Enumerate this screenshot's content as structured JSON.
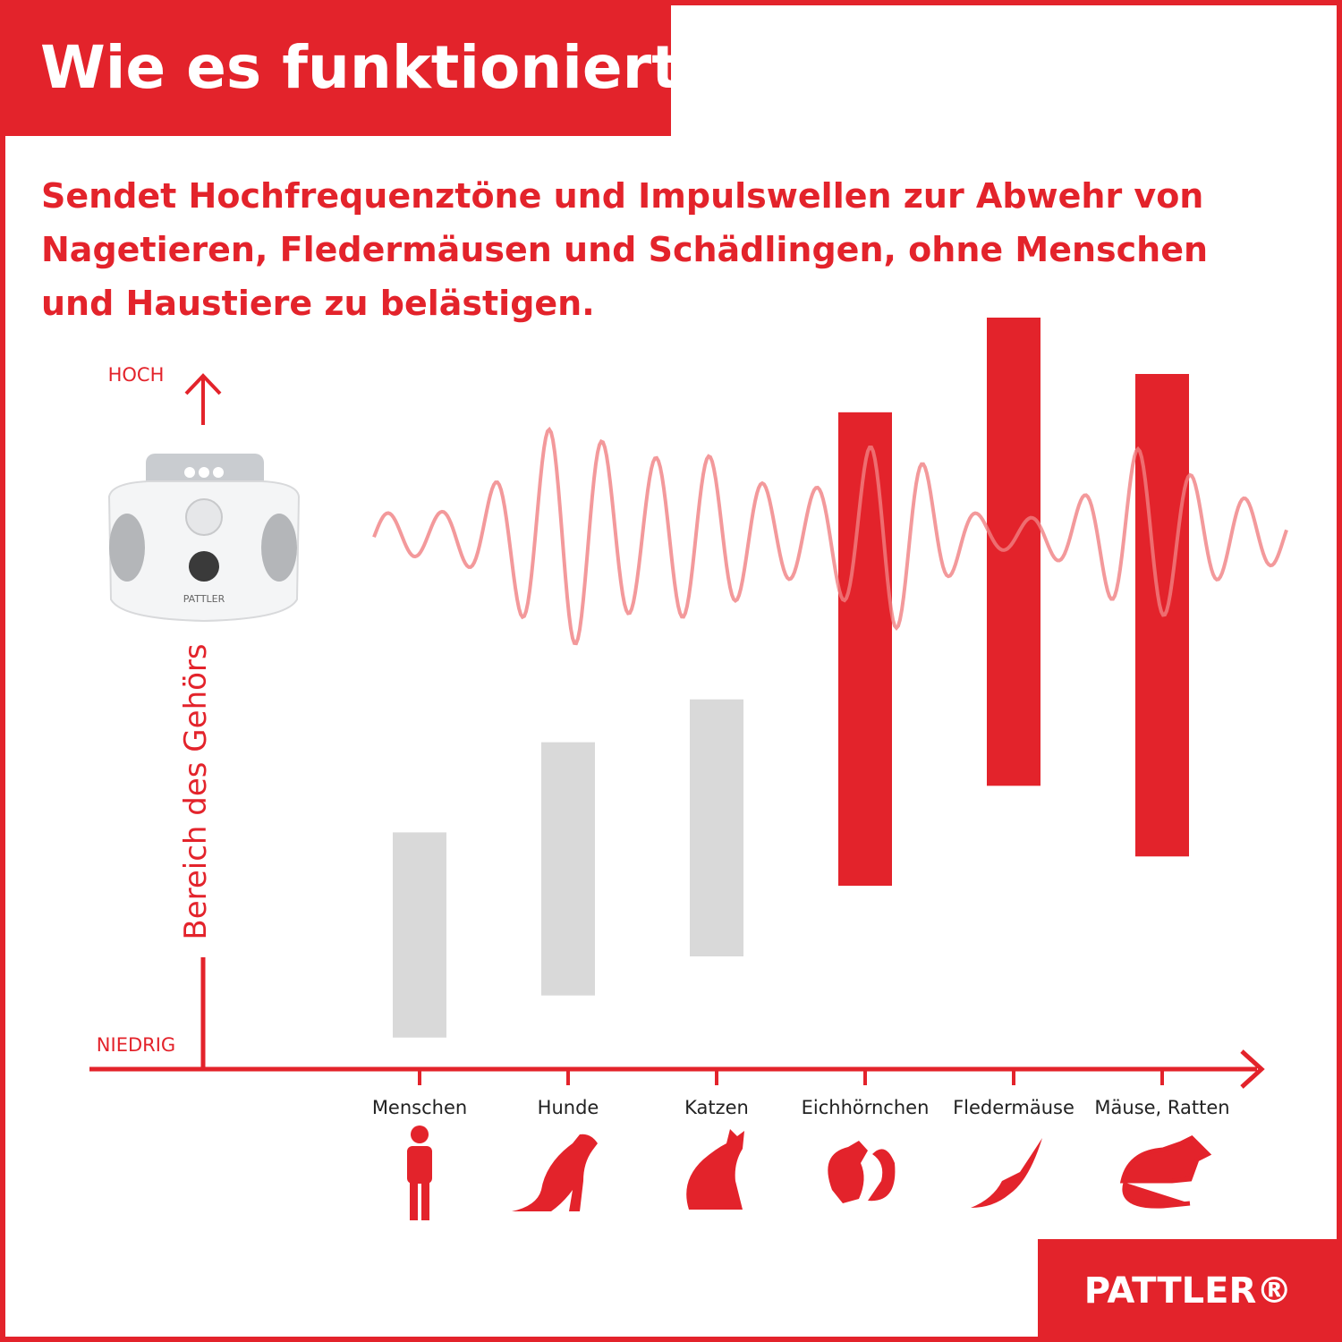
{
  "chart_data": {
    "type": "range-bar",
    "title": "Wie es funktioniert",
    "subtitle_lines": [
      "Sendet Hochfrequenztöne und Impulswellen zur Abwehr von",
      "Nagetieren, Fledermäusen und Schädlingen, ohne Menschen",
      "und Haustiere zu belästigen."
    ],
    "y_label": "Bereich des Gehörs",
    "y_high_label": "HOCH",
    "y_low_label": "NIEDRIG",
    "categories": [
      "Menschen",
      "Hunde",
      "Katzen",
      "Eichhörnchen",
      "Fledermäuse",
      "Mäuse, Ratten"
    ],
    "low": [
      4.2,
      9.8,
      15,
      24.4,
      37.7,
      28.3
    ],
    "high": [
      31.5,
      43.5,
      49.2,
      87.4,
      100,
      92.5
    ],
    "colors": [
      "#d9d9d9",
      "#d9d9d9",
      "#d9d9d9",
      "#e3232b",
      "#e3232b",
      "#e3232b"
    ],
    "ylim": [
      0,
      100
    ],
    "brand": "PATTLER®"
  }
}
